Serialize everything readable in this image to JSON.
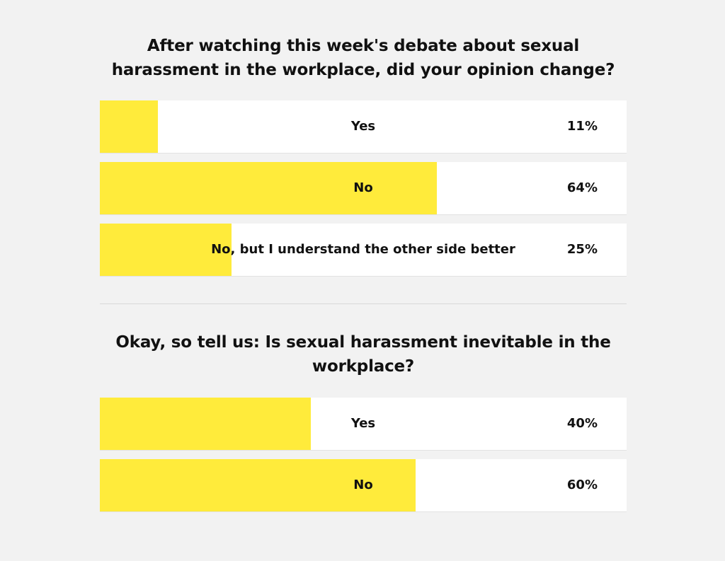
{
  "chart_data": [
    {
      "type": "bar",
      "title": "After watching this week's debate about sexual harassment in the workplace, did your opinion change?",
      "categories": [
        "Yes",
        "No",
        "No, but I understand the other side better"
      ],
      "values": [
        11,
        64,
        25
      ],
      "value_labels": [
        "11%",
        "64%",
        "25%"
      ],
      "xlim": [
        0,
        100
      ],
      "bar_color": "#ffeb3b"
    },
    {
      "type": "bar",
      "title": "Okay, so tell us: Is sexual harassment inevitable in the workplace?",
      "categories": [
        "Yes",
        "No"
      ],
      "values": [
        40,
        60
      ],
      "value_labels": [
        "40%",
        "60%"
      ],
      "xlim": [
        0,
        100
      ],
      "bar_color": "#ffeb3b"
    }
  ]
}
